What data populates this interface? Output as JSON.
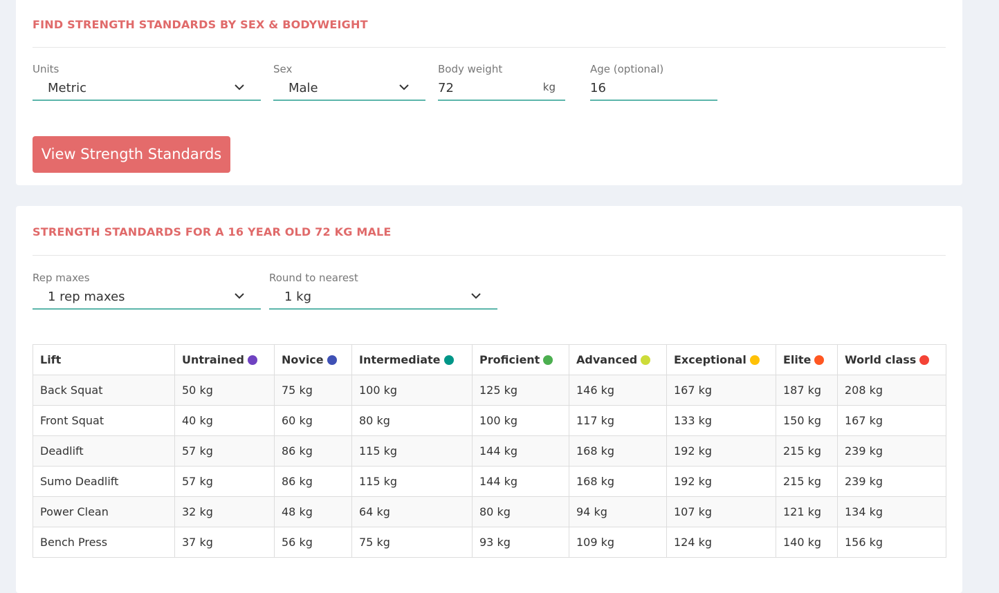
{
  "search": {
    "title": "FIND STRENGTH STANDARDS BY SEX & BODYWEIGHT",
    "fields": [
      {
        "label": "Units",
        "value": "Metric",
        "kind": "select"
      },
      {
        "label": "Sex",
        "value": "Male",
        "kind": "select"
      },
      {
        "label": "Body weight",
        "value": "72",
        "unit": "kg",
        "kind": "input"
      },
      {
        "label": "Age (optional)",
        "value": "16",
        "kind": "input"
      }
    ],
    "button": "View Strength Standards"
  },
  "results": {
    "title": "STRENGTH STANDARDS FOR A 16 YEAR OLD 72 KG MALE",
    "fields": [
      {
        "label": "Rep maxes",
        "value": "1 rep maxes",
        "kind": "select"
      },
      {
        "label": "Round to nearest",
        "value": "1 kg",
        "kind": "select"
      }
    ],
    "table": {
      "headers": [
        {
          "label": "Lift"
        },
        {
          "label": "Untrained",
          "color": "#6f42c1"
        },
        {
          "label": "Novice",
          "color": "#3f51b5"
        },
        {
          "label": "Intermediate",
          "color": "#009688"
        },
        {
          "label": "Proficient",
          "color": "#4caf50"
        },
        {
          "label": "Advanced",
          "color": "#cddc39"
        },
        {
          "label": "Exceptional",
          "color": "#ffc107"
        },
        {
          "label": "Elite",
          "color": "#ff5722"
        },
        {
          "label": "World class",
          "color": "#f44336"
        }
      ],
      "rows": [
        [
          "Back Squat",
          "50 kg",
          "75 kg",
          "100 kg",
          "125 kg",
          "146 kg",
          "167 kg",
          "187 kg",
          "208 kg"
        ],
        [
          "Front Squat",
          "40 kg",
          "60 kg",
          "80 kg",
          "100 kg",
          "117 kg",
          "133 kg",
          "150 kg",
          "167 kg"
        ],
        [
          "Deadlift",
          "57 kg",
          "86 kg",
          "115 kg",
          "144 kg",
          "168 kg",
          "192 kg",
          "215 kg",
          "239 kg"
        ],
        [
          "Sumo Deadlift",
          "57 kg",
          "86 kg",
          "115 kg",
          "144 kg",
          "168 kg",
          "192 kg",
          "215 kg",
          "239 kg"
        ],
        [
          "Power Clean",
          "32 kg",
          "48 kg",
          "64 kg",
          "80 kg",
          "94 kg",
          "107 kg",
          "121 kg",
          "134 kg"
        ],
        [
          "Bench Press",
          "37 kg",
          "56 kg",
          "75 kg",
          "93 kg",
          "109 kg",
          "124 kg",
          "140 kg",
          "156 kg"
        ]
      ]
    }
  }
}
